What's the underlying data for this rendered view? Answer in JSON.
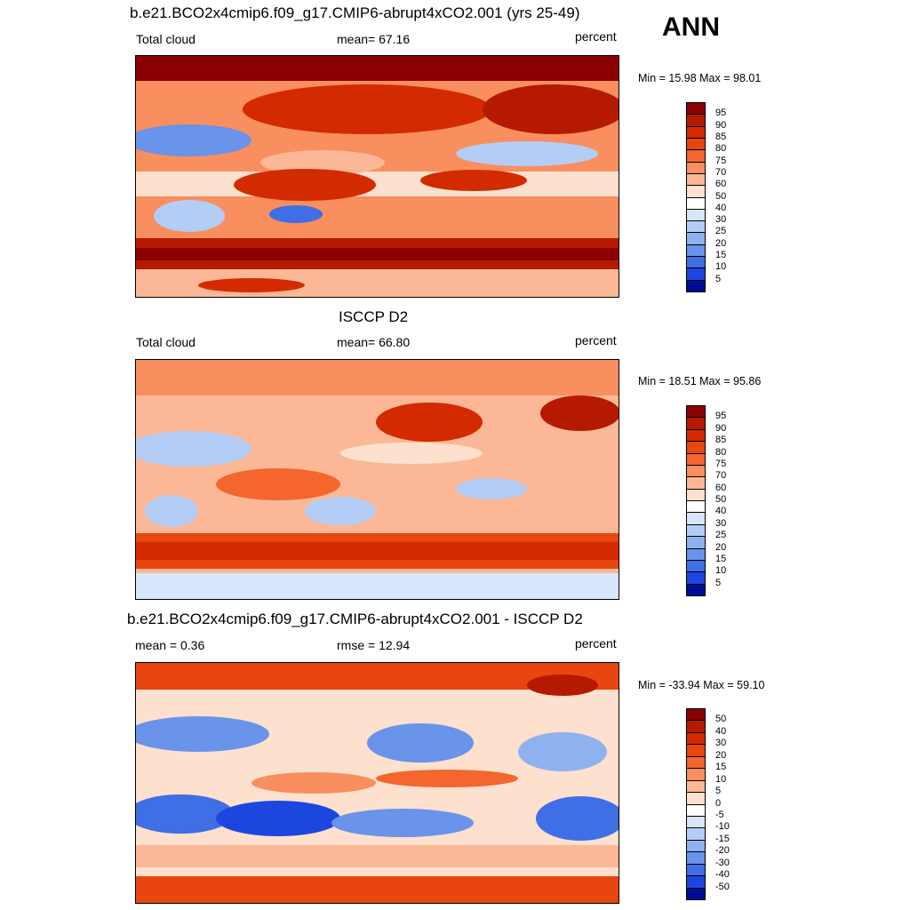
{
  "season": "ANN",
  "panels": [
    {
      "title": "b.e21.BCO2x4cmip6.f09_g17.CMIP6-abrupt4xCO2.001 (yrs 25-49)",
      "left_label": "Total cloud",
      "center_label": "mean=  67.16",
      "units": "percent",
      "minmax": "Min =  15.98 Max =  98.01",
      "palette": "fill"
    },
    {
      "title": "ISCCP D2",
      "left_label": "Total cloud",
      "center_label": "mean=  66.80",
      "units": "percent",
      "minmax": "Min =  18.51 Max =  95.86",
      "palette": "fill"
    },
    {
      "title": "b.e21.BCO2x4cmip6.f09_g17.CMIP6-abrupt4xCO2.001 - ISCCP D2",
      "left_label": "mean =   0.36",
      "center_label": "rmse =  12.94",
      "units": "percent",
      "minmax": "Min = -33.94 Max =  59.10",
      "palette": "diff"
    }
  ],
  "colorbar_fill": {
    "labels": [
      "95",
      "90",
      "85",
      "80",
      "75",
      "70",
      "60",
      "50",
      "40",
      "30",
      "25",
      "20",
      "15",
      "10",
      "5"
    ],
    "colors": [
      "#8b0000",
      "#b51a00",
      "#d42a00",
      "#e8460e",
      "#f4662e",
      "#f98e5e",
      "#fcb896",
      "#fde0ce",
      "#ffffff",
      "#d8e6fb",
      "#b4cdf6",
      "#8fb1f0",
      "#6a93ea",
      "#3f6ee5",
      "#1d46e0",
      "#000c96"
    ]
  },
  "colorbar_diff": {
    "labels": [
      "50",
      "40",
      "30",
      "20",
      "15",
      "10",
      "5",
      "0",
      "-5",
      "-10",
      "-15",
      "-20",
      "-30",
      "-40",
      "-50"
    ],
    "colors": [
      "#8b0000",
      "#b51a00",
      "#d42a00",
      "#e8460e",
      "#f4662e",
      "#f98e5e",
      "#fcb896",
      "#fde0ce",
      "#ffffff",
      "#d8e6fb",
      "#b4cdf6",
      "#8fb1f0",
      "#6a93ea",
      "#3f6ee5",
      "#1d46e0",
      "#000c96"
    ]
  }
}
